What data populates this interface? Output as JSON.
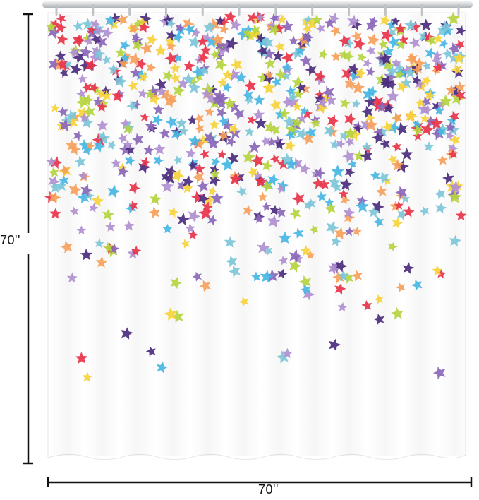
{
  "dimensions": {
    "height_label": "70''",
    "width_label": "70''"
  },
  "curtain": {
    "fabric_color": "#ffffff",
    "rod_color": "#cfd2d4",
    "ring_count": 12
  },
  "pattern": {
    "motif": "star-icon",
    "colors": [
      "#e8334a",
      "#f6a05a",
      "#f7d23a",
      "#b4d43f",
      "#45b6e3",
      "#7cc6d8",
      "#b08fd0",
      "#8a66b8",
      "#4b2c7e"
    ]
  },
  "colors": {
    "dimension_line": "#111111"
  }
}
